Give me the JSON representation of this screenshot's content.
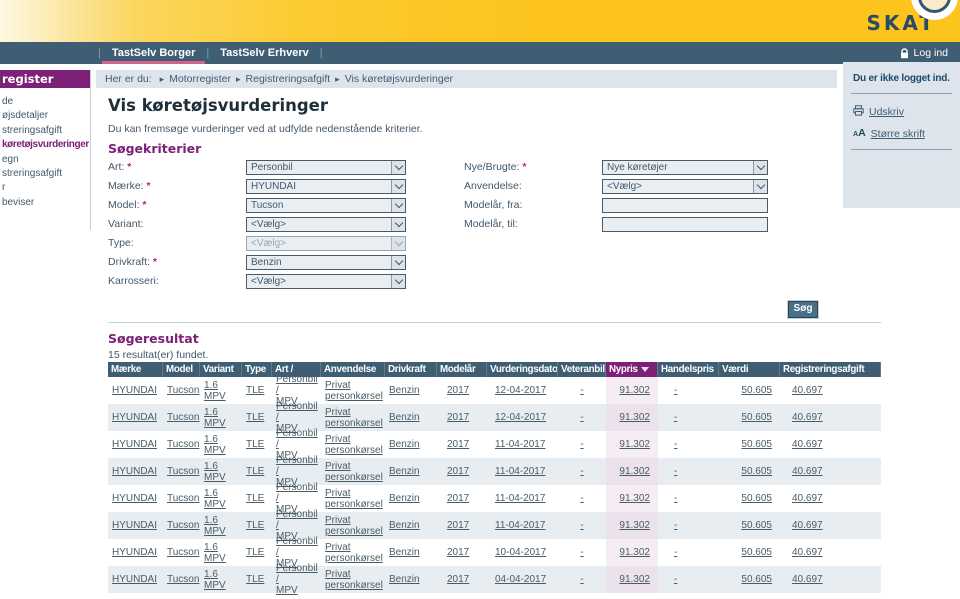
{
  "header": {
    "logo": "SKAT"
  },
  "navbar": {
    "tabs": [
      {
        "label": "TastSelv Borger",
        "active": true
      },
      {
        "label": "TastSelv Erhverv",
        "active": false
      }
    ],
    "login_label": "Log ind",
    "login_icon": "lock-icon"
  },
  "breadcrumb": {
    "prefix": "Her er du:",
    "items": [
      "Motorregister",
      "Registreringsafgift",
      "Vis køretøjsvurderinger"
    ]
  },
  "sidebar": {
    "header": "register",
    "items": [
      {
        "label": "de",
        "active": false
      },
      {
        "label": "øjsdetaljer",
        "active": false
      },
      {
        "label": "streringsafgift",
        "active": false
      },
      {
        "label": "køretøjsvurderinger",
        "active": true
      },
      {
        "label": "egn",
        "active": false
      },
      {
        "label": "streringsafgift",
        "active": false
      },
      {
        "label": "r",
        "active": false
      },
      {
        "label": "beviser",
        "active": false
      }
    ]
  },
  "right_panel": {
    "status": "Du er ikke logget ind.",
    "links": [
      {
        "label": "Udskriv",
        "icon": "printer-icon"
      },
      {
        "label": "Større skrift",
        "icon": "font-size-icon"
      }
    ]
  },
  "main": {
    "title": "Vis køretøjsvurderinger",
    "subtitle": "Du kan fremsøge vurderinger ved at udfylde nedenstående kriterier.",
    "criteria_heading": "Søgekriterier",
    "form": {
      "left": [
        {
          "label": "Art:",
          "required": true,
          "type": "select",
          "value": "Personbil"
        },
        {
          "label": "Mærke:",
          "required": true,
          "type": "select",
          "value": "HYUNDAI"
        },
        {
          "label": "Model:",
          "required": true,
          "type": "select",
          "value": "Tucson"
        },
        {
          "label": "Variant:",
          "required": false,
          "type": "select",
          "value": "<Vælg>"
        },
        {
          "label": "Type:",
          "required": false,
          "type": "select",
          "value": "<Vælg>",
          "disabled": true
        },
        {
          "label": "Drivkraft:",
          "required": true,
          "type": "select",
          "value": "Benzin"
        },
        {
          "label": "Karrosseri:",
          "required": false,
          "type": "select",
          "value": "<Vælg>"
        }
      ],
      "right": [
        {
          "label": "Nye/Brugte:",
          "required": true,
          "type": "select",
          "value": "Nye køretøjer"
        },
        {
          "label": "Anvendelse:",
          "required": false,
          "type": "select",
          "value": "<Vælg>"
        },
        {
          "label": "Modelår, fra:",
          "required": false,
          "type": "input",
          "value": ""
        },
        {
          "label": "Modelår, til:",
          "required": false,
          "type": "input",
          "value": ""
        }
      ],
      "search_button": "Søg"
    },
    "results": {
      "heading": "Søgeresultat",
      "count_text": "15 resultat(er) fundet.",
      "columns": [
        "Mærke",
        "Model",
        "Variant",
        "Type",
        "Art /",
        "Anvendelse",
        "Drivkraft",
        "Modelår",
        "Vurderingsdato",
        "Veteranbil",
        "Nypris",
        "Handelspris",
        "Værdi",
        "Registreringsafgift"
      ],
      "sort_column": "Nypris",
      "sort_icon": "sort-desc-icon",
      "rows": [
        [
          "HYUNDAI",
          "Tucson",
          "1.6\nMPV",
          "TLE",
          "Personbil /\nMPV",
          "Privat\npersonkørsel",
          "Benzin",
          "2017",
          "12-04-2017",
          "-",
          "91.302",
          "-",
          "50.605",
          "40.697"
        ],
        [
          "HYUNDAI",
          "Tucson",
          "1.6\nMPV",
          "TLE",
          "Personbil /\nMPV",
          "Privat\npersonkørsel",
          "Benzin",
          "2017",
          "12-04-2017",
          "-",
          "91.302",
          "-",
          "50.605",
          "40.697"
        ],
        [
          "HYUNDAI",
          "Tucson",
          "1.6\nMPV",
          "TLE",
          "Personbil /\nMPV",
          "Privat\npersonkørsel",
          "Benzin",
          "2017",
          "11-04-2017",
          "-",
          "91.302",
          "-",
          "50.605",
          "40.697"
        ],
        [
          "HYUNDAI",
          "Tucson",
          "1.6\nMPV",
          "TLE",
          "Personbil /\nMPV",
          "Privat\npersonkørsel",
          "Benzin",
          "2017",
          "11-04-2017",
          "-",
          "91.302",
          "-",
          "50.605",
          "40.697"
        ],
        [
          "HYUNDAI",
          "Tucson",
          "1.6\nMPV",
          "TLE",
          "Personbil /\nMPV",
          "Privat\npersonkørsel",
          "Benzin",
          "2017",
          "11-04-2017",
          "-",
          "91.302",
          "-",
          "50.605",
          "40.697"
        ],
        [
          "HYUNDAI",
          "Tucson",
          "1.6\nMPV",
          "TLE",
          "Personbil /\nMPV",
          "Privat\npersonkørsel",
          "Benzin",
          "2017",
          "11-04-2017",
          "-",
          "91.302",
          "-",
          "50.605",
          "40.697"
        ],
        [
          "HYUNDAI",
          "Tucson",
          "1.6\nMPV",
          "TLE",
          "Personbil /\nMPV",
          "Privat\npersonkørsel",
          "Benzin",
          "2017",
          "10-04-2017",
          "-",
          "91.302",
          "-",
          "50.605",
          "40.697"
        ],
        [
          "HYUNDAI",
          "Tucson",
          "1.6\nMPV",
          "TLE",
          "Personbil /\nMPV",
          "Privat\npersonkørsel",
          "Benzin",
          "2017",
          "04-04-2017",
          "-",
          "91.302",
          "-",
          "50.605",
          "40.697"
        ]
      ]
    }
  },
  "colors": {
    "brand_yellow": "#fcc41d",
    "navbar": "#3f5e74",
    "brand_purple": "#7d2077",
    "active_tab_underline": "#d4638b",
    "row_alt": "#e8edf2",
    "nypris_tint": "#f6edf4",
    "panel_bg": "#dde4ec"
  }
}
